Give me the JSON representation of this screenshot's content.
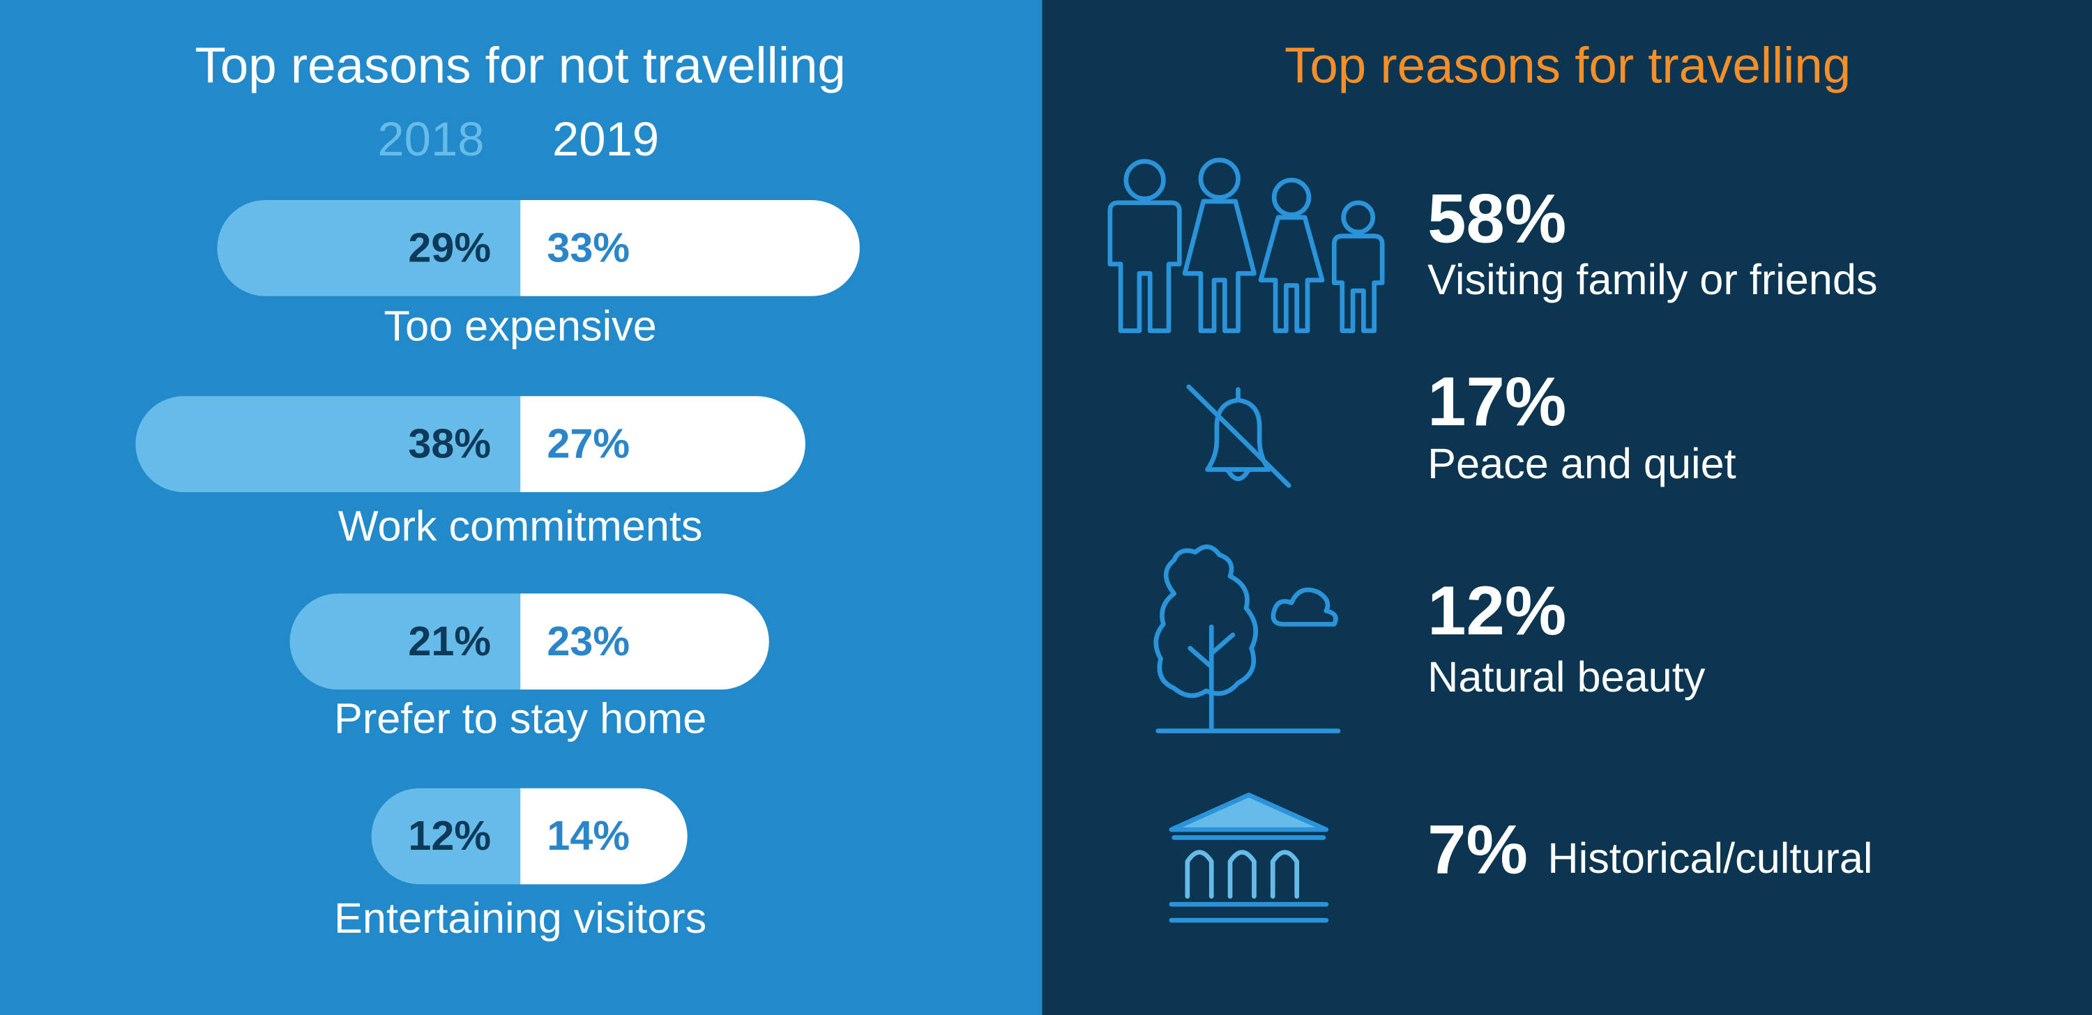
{
  "chart_data": [
    {
      "type": "bar",
      "title": "Top reasons for not travelling",
      "categories": [
        "Too expensive",
        "Work commitments",
        "Prefer to stay home",
        "Entertaining visitors"
      ],
      "series": [
        {
          "name": "2018",
          "color": "#66bbe9",
          "values": [
            29,
            38,
            21,
            12
          ],
          "value_labels": [
            "29%",
            "38%",
            "21%",
            "12%"
          ]
        },
        {
          "name": "2019",
          "color": "#ffffff",
          "values": [
            33,
            27,
            23,
            14
          ],
          "value_labels": [
            "33%",
            "27%",
            "23%",
            "14%"
          ]
        }
      ]
    },
    {
      "type": "icon-list",
      "title": "Top reasons for travelling",
      "categories": [
        "Visiting family or friends",
        "Peace and quiet",
        "Natural beauty",
        "Historical/cultural"
      ],
      "values": [
        58,
        17,
        12,
        7
      ],
      "value_labels": [
        "58%",
        "17%",
        "12%",
        "7%"
      ]
    }
  ]
}
